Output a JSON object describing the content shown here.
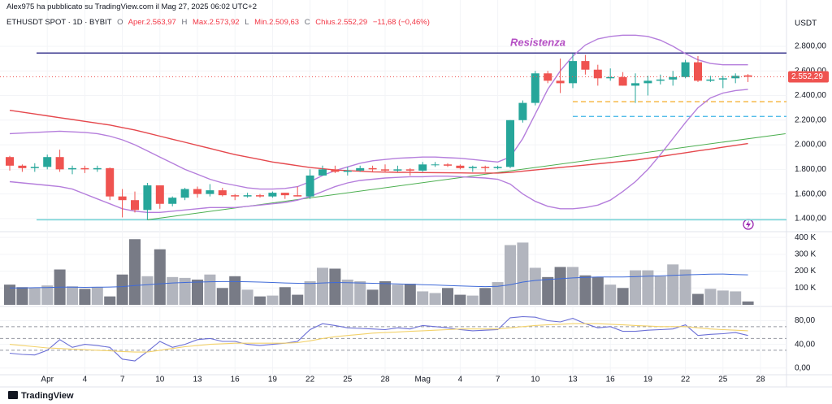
{
  "header": {
    "byline": "Alex975 ha pubblicato su TradingView.com il Mag 27, 2025 06:02 UTC+2",
    "legend": [
      "ETHUSDT SPOT · 1D · BYBIT",
      "O",
      "Aper.2.563,97",
      "H",
      "Max.2.573,92",
      "L",
      "Min.2.509,63",
      "C",
      "Chius.2.552,29",
      "−11,68 (−0,46%)"
    ],
    "footer": "TradingView"
  },
  "chart_data": [
    {
      "type": "candlestick",
      "axis_label": "USDT",
      "categories": [
        null,
        null,
        null,
        "Apr",
        null,
        null,
        "4",
        null,
        null,
        "7",
        null,
        null,
        "10",
        null,
        null,
        "13",
        null,
        null,
        "16",
        null,
        null,
        "19",
        null,
        null,
        "22",
        null,
        null,
        "25",
        null,
        null,
        "28",
        null,
        null,
        "Mag",
        null,
        null,
        "4",
        null,
        null,
        "7",
        null,
        null,
        "10",
        null,
        null,
        "13",
        null,
        null,
        "16",
        null,
        null,
        "19",
        null,
        null,
        "22",
        null,
        null,
        "25",
        null,
        null,
        "28"
      ],
      "open": [
        1900,
        1830,
        1810,
        1820,
        1900,
        1800,
        1810,
        1800,
        1810,
        1580,
        1550,
        1470,
        1670,
        1520,
        1570,
        1640,
        1600,
        1630,
        1590,
        1580,
        1590,
        1580,
        1610,
        1590,
        1580,
        1750,
        1800,
        1780,
        1790,
        1810,
        1800,
        1790,
        1800,
        1790,
        1840,
        1840,
        1830,
        1810,
        1820,
        1810,
        1820,
        2200,
        2340,
        2580,
        2520,
        2500,
        2680,
        2610,
        2540,
        2550,
        2480,
        2500,
        2520,
        2530,
        2550,
        2670,
        2520,
        2530,
        2540,
        2563.97,
        null
      ],
      "high": [
        1910,
        1840,
        1850,
        1920,
        1960,
        1830,
        1830,
        1830,
        1815,
        1640,
        1620,
        1690,
        1670,
        1580,
        1650,
        1660,
        1680,
        1650,
        1600,
        1610,
        1600,
        1620,
        1610,
        1660,
        1800,
        1830,
        1830,
        1820,
        1830,
        1830,
        1840,
        1830,
        1810,
        1860,
        1860,
        1850,
        1840,
        1830,
        1830,
        1830,
        2200,
        2360,
        2600,
        2600,
        2700,
        2740,
        2730,
        2650,
        2620,
        2590,
        2580,
        2560,
        2570,
        2600,
        2690,
        2720,
        2560,
        2560,
        2580,
        2573.92,
        null
      ],
      "low": [
        1790,
        1780,
        1780,
        1800,
        1780,
        1760,
        1770,
        1780,
        1550,
        1410,
        1450,
        1390,
        1480,
        1500,
        1550,
        1570,
        1580,
        1580,
        1550,
        1570,
        1570,
        1570,
        1560,
        1580,
        1560,
        1750,
        1770,
        1750,
        1780,
        1780,
        1780,
        1780,
        1750,
        1780,
        1820,
        1820,
        1800,
        1780,
        1780,
        1800,
        1810,
        2180,
        2320,
        2500,
        2420,
        2460,
        2570,
        2480,
        2520,
        2480,
        2340,
        2400,
        2490,
        2480,
        2540,
        2510,
        2510,
        2460,
        2500,
        2509.63,
        null
      ],
      "close": [
        1830,
        1810,
        1820,
        1900,
        1800,
        1810,
        1800,
        1810,
        1580,
        1550,
        1470,
        1670,
        1520,
        1570,
        1640,
        1600,
        1630,
        1590,
        1580,
        1590,
        1580,
        1610,
        1590,
        1580,
        1750,
        1800,
        1780,
        1790,
        1810,
        1800,
        1790,
        1800,
        1790,
        1840,
        1840,
        1830,
        1810,
        1820,
        1810,
        1820,
        2200,
        2340,
        2580,
        2520,
        2500,
        2680,
        2610,
        2540,
        2550,
        2480,
        2500,
        2520,
        2530,
        2550,
        2670,
        2520,
        2530,
        2540,
        2560,
        2552.29,
        null
      ],
      "up_color": "#26a69a",
      "down_color": "#ef5350",
      "series": [
        {
          "color": "#e5484d",
          "values": [
            2280,
            2265,
            2250,
            2235,
            2220,
            2205,
            2190,
            2175,
            2160,
            2140,
            2120,
            2095,
            2070,
            2045,
            2020,
            1995,
            1970,
            1945,
            1920,
            1900,
            1880,
            1860,
            1845,
            1830,
            1815,
            1805,
            1795,
            1790,
            1785,
            1780,
            1778,
            1776,
            1775,
            1774,
            1773,
            1772,
            1771,
            1770,
            1770,
            1770,
            1775,
            1785,
            1795,
            1805,
            1815,
            1825,
            1835,
            1845,
            1855,
            1865,
            1875,
            1890,
            1905,
            1920,
            1935,
            1950,
            1965,
            1980,
            1995,
            2010,
            null
          ]
        },
        {
          "color": "#b57edc",
          "values": [
            2090,
            2095,
            2100,
            2105,
            2110,
            2105,
            2100,
            2090,
            2070,
            2040,
            2000,
            1950,
            1900,
            1850,
            1800,
            1760,
            1720,
            1690,
            1670,
            1650,
            1640,
            1640,
            1645,
            1660,
            1700,
            1750,
            1790,
            1820,
            1850,
            1870,
            1880,
            1890,
            1895,
            1900,
            1900,
            1895,
            1890,
            1880,
            1870,
            1860,
            1900,
            2050,
            2250,
            2450,
            2600,
            2720,
            2810,
            2860,
            2880,
            2890,
            2890,
            2880,
            2850,
            2800,
            2740,
            2690,
            2660,
            2650,
            2650,
            2650,
            null
          ]
        },
        {
          "color": "#b57edc",
          "values": [
            1700,
            1690,
            1680,
            1670,
            1660,
            1640,
            1600,
            1560,
            1520,
            1480,
            1460,
            1450,
            1450,
            1460,
            1470,
            1480,
            1490,
            1490,
            1490,
            1500,
            1510,
            1520,
            1530,
            1550,
            1580,
            1620,
            1660,
            1690,
            1710,
            1720,
            1730,
            1735,
            1740,
            1740,
            1745,
            1745,
            1740,
            1735,
            1730,
            1720,
            1680,
            1600,
            1540,
            1500,
            1480,
            1480,
            1490,
            1510,
            1550,
            1620,
            1700,
            1800,
            1920,
            2050,
            2180,
            2300,
            2380,
            2420,
            2440,
            2450,
            null
          ]
        }
      ],
      "levels": [
        {
          "value": 2745,
          "color": "#3d3a8f",
          "label": "Resistenza"
        },
        {
          "value": 1390,
          "color": "#6fd0d4"
        },
        {
          "value": 2350,
          "color": "#f5b43c",
          "dashed": true
        },
        {
          "value": 2230,
          "color": "#3cb4e6",
          "dashed": true
        }
      ],
      "trendline": {
        "color": "#4caf50",
        "points": [
          [
            11,
            1390
          ],
          [
            62,
            2090
          ]
        ]
      },
      "price_label": {
        "value": 2552.29,
        "label": "2.552,29"
      },
      "ylim": [
        1307,
        3110
      ],
      "yticks": [
        {
          "value": 1400,
          "label": "1.400,00"
        },
        {
          "value": 1600,
          "label": "1.600,00"
        },
        {
          "value": 1800,
          "label": "1.800,00"
        },
        {
          "value": 2000,
          "label": "2.000,00"
        },
        {
          "value": 2200,
          "label": "2.200,00"
        },
        {
          "value": 2400,
          "label": "2.400,00"
        },
        {
          "value": 2600,
          "label": "2.600,00"
        },
        {
          "value": 2800,
          "label": "2.800,00"
        }
      ]
    },
    {
      "type": "bar",
      "values": [
        120000,
        105000,
        100000,
        115000,
        210000,
        110000,
        95000,
        105000,
        50000,
        180000,
        390000,
        170000,
        330000,
        165000,
        160000,
        150000,
        180000,
        100000,
        170000,
        90000,
        50000,
        55000,
        105000,
        60000,
        140000,
        220000,
        215000,
        150000,
        140000,
        90000,
        140000,
        120000,
        125000,
        80000,
        70000,
        100000,
        60000,
        55000,
        100000,
        135000,
        355000,
        370000,
        220000,
        165000,
        225000,
        225000,
        175000,
        165000,
        120000,
        100000,
        205000,
        205000,
        170000,
        240000,
        210000,
        65000,
        95000,
        85000,
        80000,
        20000,
        null
      ],
      "up_color": "#b2b5be",
      "down_color": "#787b86",
      "series": [
        {
          "color": "#3f6ad8",
          "values": [
            100000,
            100000,
            102000,
            103000,
            105000,
            105000,
            104000,
            105000,
            106000,
            108000,
            115000,
            120000,
            125000,
            130000,
            133000,
            135000,
            137000,
            138000,
            138000,
            137000,
            135000,
            133000,
            130000,
            128000,
            127000,
            130000,
            133000,
            132000,
            130000,
            128000,
            126000,
            124000,
            122000,
            120000,
            118000,
            115000,
            112000,
            110000,
            108000,
            110000,
            120000,
            135000,
            145000,
            150000,
            155000,
            160000,
            163000,
            165000,
            165000,
            165000,
            167000,
            170000,
            172000,
            175000,
            178000,
            180000,
            182000,
            183000,
            180000,
            178000,
            null
          ]
        }
      ],
      "ylim": [
        0,
        425000
      ],
      "yticks": [
        {
          "value": 100000,
          "label": "100 K"
        },
        {
          "value": 200000,
          "label": "200 K"
        },
        {
          "value": 300000,
          "label": "300 K"
        },
        {
          "value": 400000,
          "label": "400 K"
        }
      ]
    },
    {
      "type": "line",
      "series": [
        {
          "color": "#6b6fd6",
          "values": [
            25,
            23,
            22,
            30,
            48,
            35,
            40,
            38,
            35,
            15,
            12,
            28,
            45,
            35,
            40,
            48,
            50,
            45,
            45,
            40,
            38,
            40,
            42,
            45,
            65,
            75,
            72,
            68,
            67,
            66,
            65,
            68,
            66,
            72,
            70,
            68,
            65,
            63,
            64,
            65,
            85,
            87,
            86,
            80,
            78,
            84,
            75,
            68,
            70,
            62,
            62,
            64,
            65,
            66,
            73,
            55,
            57,
            58,
            60,
            55,
            null
          ]
        },
        {
          "color": "#f3d26b",
          "values": [
            40,
            38,
            36,
            34,
            33,
            32,
            31,
            30,
            29,
            28,
            27,
            27,
            30,
            33,
            36,
            38,
            40,
            41,
            42,
            42,
            42,
            42,
            42,
            43,
            46,
            50,
            53,
            55,
            57,
            59,
            60,
            61,
            62,
            63,
            64,
            65,
            66,
            66,
            66,
            66,
            68,
            70,
            72,
            73,
            74,
            75,
            75,
            75,
            74,
            73,
            72,
            71,
            70,
            70,
            70,
            68,
            66,
            65,
            64,
            63,
            null
          ]
        }
      ],
      "levels": [
        {
          "value": 70
        },
        {
          "value": 50
        },
        {
          "value": 30
        }
      ],
      "ylim": [
        -10,
        100
      ],
      "yticks": [
        {
          "value": 0,
          "label": "0,00"
        },
        {
          "value": 40,
          "label": "40,00"
        },
        {
          "value": 80,
          "label": "80,00"
        }
      ]
    }
  ]
}
